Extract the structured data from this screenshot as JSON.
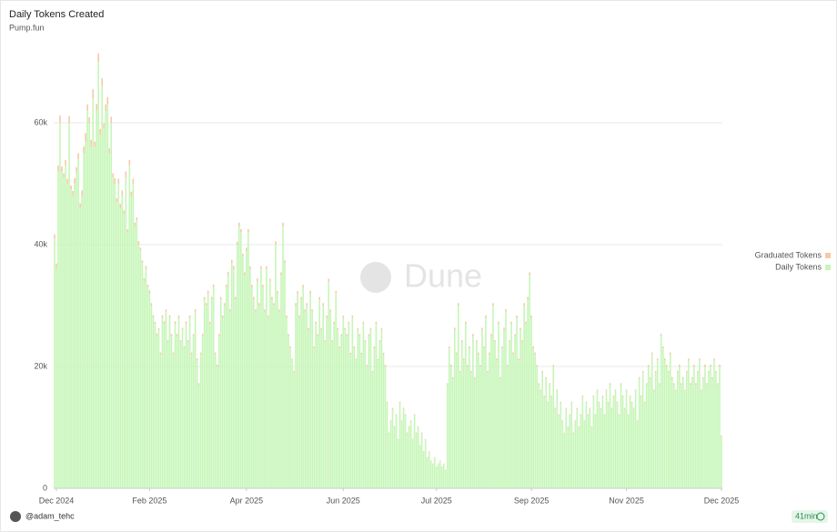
{
  "chart_data": {
    "type": "stacked-bar",
    "title": "Daily Tokens Created",
    "subtitle": "Pump.fun",
    "watermark": "Dune",
    "author": "@adam_tehc",
    "freshness": "41min",
    "legend_position": "right",
    "grid": true,
    "ylim": [
      0,
      75000
    ],
    "yticks": [
      {
        "value": 0,
        "label": "0"
      },
      {
        "value": 20000,
        "label": "20k"
      },
      {
        "value": 40000,
        "label": "40k"
      },
      {
        "value": 60000,
        "label": "60k"
      }
    ],
    "xticks": [
      {
        "value": 1,
        "label": "Dec 2024"
      },
      {
        "value": 52,
        "label": "Feb 2025"
      },
      {
        "value": 105,
        "label": "Apr 2025"
      },
      {
        "value": 158,
        "label": "Jun 2025"
      },
      {
        "value": 209,
        "label": "Jul 2025"
      },
      {
        "value": 261,
        "label": "Sep 2025"
      },
      {
        "value": 313,
        "label": "Nov 2025"
      },
      {
        "value": 365,
        "label": "Dec 2025"
      }
    ],
    "series": [
      {
        "name": "Daily Tokens",
        "color": "#c6f6b8",
        "values": [
          41000,
          36000,
          52000,
          60000,
          52000,
          51000,
          53000,
          50000,
          60000,
          49000,
          48000,
          50000,
          52000,
          54000,
          46000,
          48000,
          55000,
          57000,
          62000,
          60000,
          56000,
          64000,
          56000,
          62000,
          70000,
          58000,
          66000,
          59000,
          62000,
          63000,
          55000,
          60000,
          51000,
          50000,
          47000,
          50000,
          46000,
          48000,
          45000,
          51000,
          42000,
          53000,
          48000,
          50000,
          43000,
          44000,
          40000,
          39000,
          37000,
          34000,
          36000,
          33000,
          32000,
          30000,
          28000,
          27000,
          25000,
          26000,
          22000,
          28000,
          27000,
          29000,
          24000,
          28000,
          25000,
          22000,
          27000,
          25000,
          28000,
          24000,
          26000,
          23000,
          27000,
          24000,
          28000,
          22000,
          25000,
          29000,
          21000,
          17000,
          22000,
          25000,
          31000,
          30000,
          32000,
          27000,
          31000,
          33000,
          22000,
          20000,
          25000,
          31000,
          28000,
          30000,
          33000,
          35000,
          29000,
          37000,
          36000,
          31000,
          40000,
          43000,
          42000,
          38000,
          35000,
          39000,
          42000,
          36000,
          33000,
          31000,
          29000,
          34000,
          30000,
          36000,
          33000,
          29000,
          36000,
          28000,
          34000,
          31000,
          30000,
          40000,
          32000,
          29000,
          35000,
          43000,
          37000,
          28000,
          25000,
          23000,
          21000,
          19000,
          30000,
          32000,
          28000,
          31000,
          33000,
          29000,
          30000,
          26000,
          32000,
          29000,
          23000,
          27000,
          25000,
          31000,
          26000,
          30000,
          24000,
          28000,
          34000,
          29000,
          24000,
          27000,
          32000,
          26000,
          23000,
          25000,
          28000,
          26000,
          25000,
          27000,
          22000,
          28000,
          23000,
          21000,
          26000,
          25000,
          22000,
          27000,
          24000,
          20000,
          25000,
          26000,
          19000,
          23000,
          27000,
          21000,
          24000,
          26000,
          22000,
          20000,
          14000,
          9000,
          11000,
          13000,
          10000,
          12000,
          8000,
          14000,
          11000,
          13000,
          12000,
          9000,
          10000,
          11000,
          8000,
          12000,
          9000,
          10000,
          7000,
          9000,
          6000,
          8000,
          5000,
          6000,
          4500,
          4000,
          5000,
          3500,
          4000,
          4500,
          3500,
          4000,
          3000,
          17000,
          23000,
          20000,
          18000,
          26000,
          22000,
          30000,
          19000,
          24000,
          21000,
          27000,
          20000,
          23000,
          19000,
          25000,
          18000,
          24000,
          22000,
          20000,
          26000,
          23000,
          28000,
          19000,
          22000,
          25000,
          30000,
          24000,
          21000,
          27000,
          18000,
          23000,
          26000,
          29000,
          20000,
          24000,
          27000,
          22000,
          25000,
          28000,
          21000,
          26000,
          24000,
          30000,
          27000,
          31000,
          35000,
          28000,
          23000,
          22000,
          20000,
          17000,
          16000,
          19000,
          15000,
          18000,
          14000,
          17000,
          15000,
          20000,
          13000,
          16000,
          12000,
          14000,
          11000,
          9000,
          13000,
          10000,
          12000,
          14000,
          9000,
          11000,
          13000,
          10000,
          12000,
          15000,
          11000,
          14000,
          12000,
          13000,
          10000,
          15000,
          12000,
          16000,
          14000,
          13000,
          15000,
          12000,
          16000,
          14000,
          17000,
          13000,
          15000,
          16000,
          14000,
          12000,
          17000,
          15000,
          13000,
          16000,
          12000,
          15000,
          14000,
          13000,
          16000,
          11000,
          18000,
          15000,
          19000,
          14000,
          17000,
          20000,
          18000,
          22000,
          16000,
          19000,
          21000,
          17000,
          25000,
          23000,
          21000,
          20000,
          19000,
          22000,
          18000,
          17000,
          16000,
          19000,
          20000,
          17000,
          18000,
          16000,
          19000,
          21000,
          17000,
          18000,
          20000,
          17000,
          19000,
          21000,
          16000,
          18000,
          20000,
          17000,
          19000,
          20000,
          18000,
          21000,
          19000,
          17000,
          20000,
          8500
        ]
      },
      {
        "name": "Graduated Tokens",
        "color": "#f8c8a6",
        "values": [
          700,
          900,
          1000,
          1200,
          800,
          700,
          900,
          800,
          1100,
          700,
          800,
          900,
          700,
          1000,
          800,
          900,
          1100,
          1300,
          1000,
          900,
          1200,
          1500,
          900,
          1100,
          1400,
          1000,
          1300,
          900,
          1000,
          1200,
          800,
          1000,
          700,
          900,
          600,
          800,
          700,
          900,
          600,
          1000,
          500,
          900,
          700,
          800,
          600,
          500,
          600,
          500,
          400,
          500,
          500,
          400,
          500,
          400,
          400,
          300,
          400,
          300,
          300,
          400,
          400,
          350,
          300,
          400,
          350,
          300,
          400,
          350,
          400,
          300,
          350,
          300,
          400,
          300,
          350,
          300,
          300,
          400,
          300,
          250,
          300,
          350,
          400,
          400,
          450,
          350,
          400,
          450,
          300,
          300,
          350,
          400,
          350,
          400,
          450,
          500,
          400,
          500,
          500,
          400,
          500,
          600,
          550,
          500,
          450,
          500,
          550,
          450,
          400,
          400,
          350,
          450,
          400,
          450,
          400,
          350,
          450,
          350,
          400,
          400,
          400,
          550,
          400,
          350,
          450,
          600,
          450,
          350,
          300,
          300,
          250,
          250,
          400,
          400,
          350,
          400,
          400,
          350,
          400,
          300,
          400,
          350,
          300,
          350,
          300,
          400,
          300,
          400,
          300,
          350,
          400,
          350,
          300,
          350,
          400,
          300,
          300,
          300,
          350,
          300,
          300,
          350,
          250,
          350,
          300,
          250,
          300,
          300,
          250,
          350,
          300,
          250,
          300,
          300,
          250,
          300,
          350,
          250,
          300,
          300,
          250,
          250,
          200,
          150,
          150,
          200,
          150,
          150,
          100,
          200,
          150,
          200,
          150,
          150,
          150,
          150,
          100,
          150,
          150,
          150,
          100,
          150,
          100,
          100,
          100,
          100,
          80,
          80,
          100,
          80,
          80,
          80,
          80,
          80,
          60,
          250,
          300,
          300,
          250,
          350,
          300,
          400,
          250,
          300,
          300,
          350,
          250,
          300,
          250,
          350,
          250,
          300,
          300,
          250,
          350,
          300,
          350,
          250,
          300,
          350,
          400,
          300,
          300,
          350,
          250,
          300,
          350,
          400,
          250,
          300,
          350,
          300,
          300,
          350,
          300,
          350,
          300,
          400,
          350,
          400,
          450,
          350,
          300,
          300,
          250,
          250,
          200,
          250,
          200,
          250,
          200,
          250,
          200,
          250,
          200,
          200,
          150,
          200,
          150,
          150,
          200,
          150,
          150,
          200,
          150,
          150,
          200,
          150,
          150,
          200,
          150,
          200,
          150,
          200,
          150,
          200,
          150,
          200,
          200,
          150,
          200,
          150,
          200,
          200,
          250,
          200,
          200,
          200,
          200,
          150,
          250,
          200,
          200,
          200,
          150,
          200,
          200,
          200,
          200,
          150,
          250,
          200,
          250,
          200,
          250,
          250,
          250,
          300,
          200,
          250,
          300,
          250,
          350,
          300,
          300,
          250,
          250,
          300,
          250,
          250,
          200,
          250,
          300,
          250,
          250,
          200,
          250,
          300,
          250,
          250,
          300,
          250,
          250,
          300,
          200,
          250,
          300,
          250,
          250,
          300,
          250,
          300,
          250,
          250,
          300,
          150
        ]
      }
    ]
  }
}
